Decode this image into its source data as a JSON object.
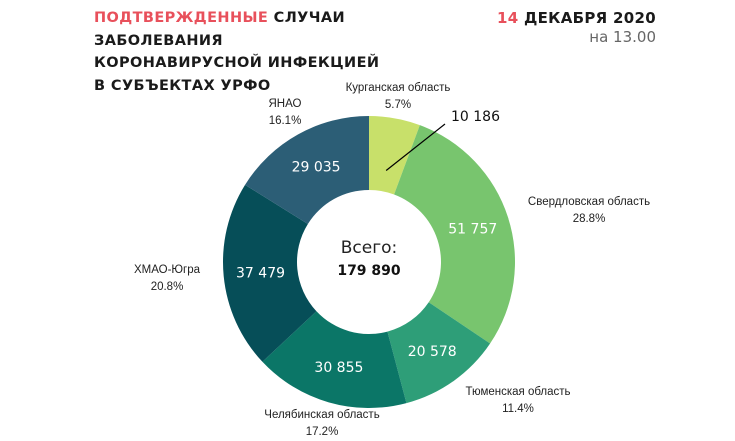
{
  "header": {
    "title_accent": "Подтвержденные",
    "title_rest": " случаи",
    "title_line2": "заболевания",
    "title_line3": "коронавирусной инфекцией",
    "title_line4": "в субъектах УрФО",
    "date_day": "14",
    "date_rest": " ДЕКАБРЯ 2020",
    "time": "на 13.00"
  },
  "chart_data": {
    "type": "pie",
    "style": "donut",
    "center_label": "Всего:",
    "center_total": "179 890",
    "slices": [
      {
        "name": "Курганская область",
        "value": 10186,
        "value_label": "10 186",
        "percent": "5.7%",
        "color": "#c8e06a"
      },
      {
        "name": "Свердловская область",
        "value": 51757,
        "value_label": "51 757",
        "percent": "28.8%",
        "color": "#78c56e"
      },
      {
        "name": "Тюменская область",
        "value": 20578,
        "value_label": "20 578",
        "percent": "11.4%",
        "color": "#2e9e78"
      },
      {
        "name": "Челябинская область",
        "value": 30855,
        "value_label": "30 855",
        "percent": "17.2%",
        "color": "#0b7667"
      },
      {
        "name": "ХМАО-Югра",
        "value": 37479,
        "value_label": "37 479",
        "percent": "20.8%",
        "color": "#064e58"
      },
      {
        "name": "ЯНАО",
        "value": 29035,
        "value_label": "29 035",
        "percent": "16.1%",
        "color": "#2c5e76"
      }
    ]
  }
}
